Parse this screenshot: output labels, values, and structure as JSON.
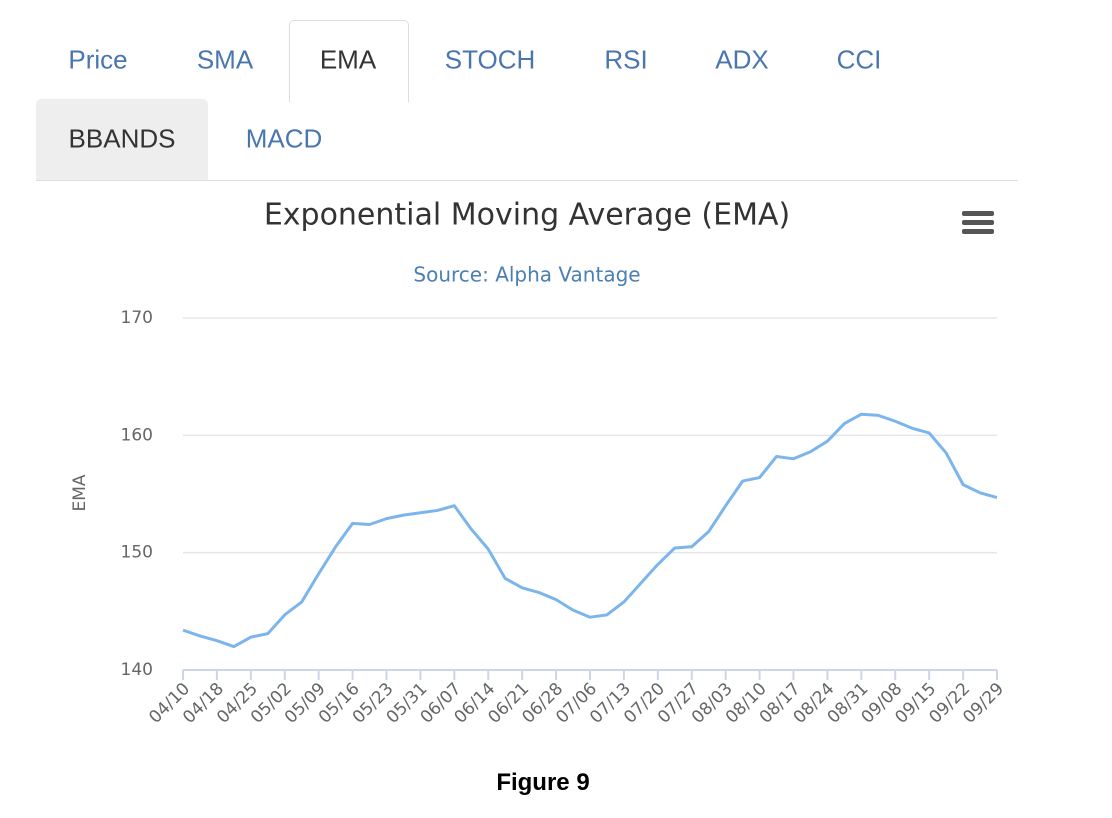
{
  "tabs": [
    "Price",
    "SMA",
    "EMA",
    "STOCH",
    "RSI",
    "ADX",
    "CCI",
    "BBANDS",
    "MACD"
  ],
  "caption": "Figure 9",
  "chart_data": {
    "type": "line",
    "title": "Exponential Moving Average (EMA)",
    "subtitle": "Source: Alpha Vantage",
    "y_label": "EMA",
    "color": "#7cb5ec",
    "grid": true,
    "ylim": [
      140,
      170
    ],
    "yticks": [
      140,
      150,
      160,
      170
    ],
    "categories": [
      "04/10",
      null,
      "04/18",
      null,
      "04/25",
      null,
      "05/02",
      null,
      "05/09",
      null,
      "05/16",
      null,
      "05/23",
      null,
      "05/31",
      null,
      "06/07",
      null,
      "06/14",
      null,
      "06/21",
      null,
      "06/28",
      null,
      "07/06",
      null,
      "07/13",
      null,
      "07/20",
      null,
      "07/27",
      null,
      "08/03",
      null,
      "08/10",
      null,
      "08/17",
      null,
      "08/24",
      null,
      "08/31",
      null,
      "09/08",
      null,
      "09/15",
      null,
      "09/22",
      null,
      "09/29"
    ],
    "values": [
      143.4,
      142.9,
      142.5,
      142.0,
      142.8,
      143.1,
      144.7,
      145.8,
      148.2,
      150.5,
      152.5,
      152.4,
      152.9,
      153.2,
      153.4,
      153.6,
      154.0,
      152.0,
      150.3,
      147.8,
      147.0,
      146.6,
      146.0,
      145.1,
      144.5,
      144.7,
      145.8,
      147.4,
      149.0,
      150.4,
      150.5,
      151.8,
      154.0,
      156.1,
      156.4,
      158.2,
      158.0,
      158.6,
      159.5,
      161.0,
      161.8,
      161.7,
      161.2,
      160.6,
      160.2,
      158.5,
      155.8,
      155.1,
      154.7
    ]
  }
}
